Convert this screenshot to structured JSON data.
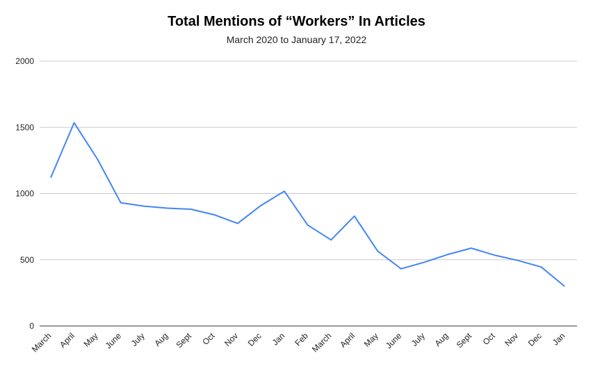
{
  "chart_data": {
    "type": "line",
    "title": "Total Mentions of “Workers” In Articles",
    "subtitle": "March 2020 to January 17, 2022",
    "xlabel": "",
    "ylabel": "",
    "ylim": [
      0,
      2000
    ],
    "yticks": [
      0,
      500,
      1000,
      1500,
      2000
    ],
    "grid": true,
    "legend": "none",
    "categories": [
      "March",
      "April",
      "May",
      "June",
      "July",
      "Aug",
      "Sept",
      "Oct",
      "Nov",
      "Dec",
      "Jan",
      "Feb",
      "March",
      "April",
      "May",
      "June",
      "July",
      "Aug",
      "Sept",
      "Oct",
      "Nov",
      "Dec",
      "Jan"
    ],
    "series": [
      {
        "values": [
          1120,
          1535,
          1260,
          930,
          905,
          890,
          882,
          840,
          775,
          910,
          1018,
          762,
          650,
          830,
          565,
          432,
          482,
          540,
          588,
          535,
          495,
          445,
          300
        ],
        "color": "#4285f4"
      }
    ],
    "colors": {
      "line": "#4285f4",
      "grid": "#cccccc",
      "axis": "#333333"
    }
  }
}
